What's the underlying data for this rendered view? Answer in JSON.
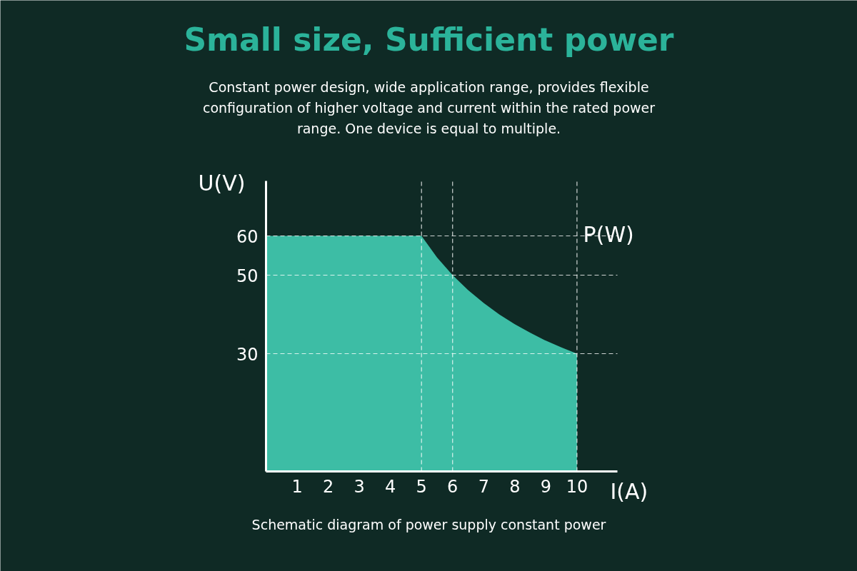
{
  "chart_data": {
    "type": "area",
    "title": "Small size, Sufficient power",
    "subtitle": "Constant power design, wide application range, provides flexible configuration of higher voltage and current within the rated power range. One device is equal to multiple.",
    "xlabel": "I(A)",
    "ylabel": "U(V)",
    "x": [
      0,
      1,
      2,
      3,
      4,
      5,
      5.5,
      6,
      6.5,
      7,
      7.5,
      8,
      8.5,
      9,
      9.5,
      10
    ],
    "series": [
      {
        "color": "#3dbda5",
        "values": [
          60,
          60,
          60,
          60,
          60,
          60,
          54.5,
          50,
          46.2,
          42.9,
          40,
          37.5,
          35.3,
          33.3,
          31.6,
          30
        ]
      }
    ],
    "xlim": [
      0,
      11.3
    ],
    "ylim": [
      0,
      74
    ],
    "xticks": [
      1,
      2,
      3,
      4,
      5,
      6,
      7,
      8,
      9,
      10
    ],
    "yticks": [
      30,
      50,
      60
    ],
    "ref_lines": [
      {
        "axis": "y",
        "value": 60,
        "color": "#ffffff",
        "line_style": "dashed"
      },
      {
        "axis": "y",
        "value": 50,
        "color": "#ffffff",
        "line_style": "dashed"
      },
      {
        "axis": "y",
        "value": 30,
        "color": "#ffffff",
        "line_style": "dashed"
      },
      {
        "axis": "x",
        "value": 5,
        "color": "#ffffff",
        "line_style": "dashed"
      },
      {
        "axis": "x",
        "value": 6,
        "color": "#ffffff",
        "line_style": "dashed"
      },
      {
        "axis": "x",
        "value": 10,
        "color": "#ffffff",
        "line_style": "dashed"
      }
    ],
    "annotations": [
      {
        "text": "P(W)",
        "x": 10.2,
        "y": 60
      },
      "Schematic diagram of power supply constant power"
    ]
  }
}
